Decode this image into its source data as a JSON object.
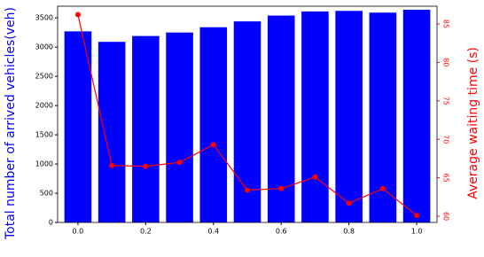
{
  "chart_data": {
    "type": "bar",
    "x": [
      0.0,
      0.1,
      0.2,
      0.3,
      0.4,
      0.5,
      0.6,
      0.7,
      0.8,
      0.9,
      1.0
    ],
    "series": [
      {
        "type": "bar",
        "color": "#0000ff",
        "values": [
          3270,
          3090,
          3190,
          3250,
          3340,
          3440,
          3540,
          3610,
          3620,
          3590,
          3640
        ]
      },
      {
        "type": "line",
        "color": "#ff0000",
        "axis": "y2",
        "values": [
          86.2,
          66.6,
          66.5,
          67.0,
          69.3,
          63.4,
          63.6,
          65.1,
          61.7,
          63.6,
          60.1
        ]
      }
    ],
    "ylabel": "Total number of arrived vehicles(veh)",
    "y2label": "Average waiting time (s)",
    "xlim": [
      -0.06,
      1.06
    ],
    "xticks": [
      {
        "value": 0,
        "label": "0.0"
      },
      0.2,
      0.4,
      0.6,
      0.8,
      {
        "value": 1,
        "label": "1.0"
      }
    ],
    "ylim": [
      0,
      3700
    ],
    "yticks": [
      0,
      500,
      1000,
      1500,
      2000,
      2500,
      3000,
      3500
    ],
    "y2lim": [
      59.2,
      87.3
    ],
    "y2ticks": [
      60,
      65,
      70,
      75,
      80,
      85
    ]
  }
}
